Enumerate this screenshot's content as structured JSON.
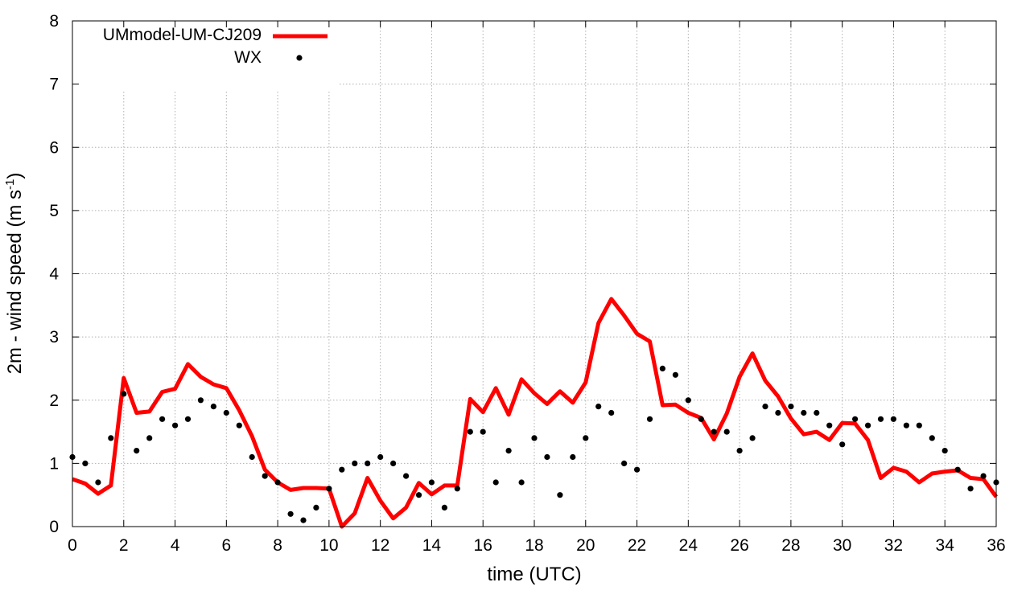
{
  "chart_data": {
    "type": "line",
    "xlabel": "time (UTC)",
    "ylabel_main": "2m - wind speed  (m s",
    "ylabel_sup": "-1",
    "ylabel_close": ")",
    "xlim": [
      0,
      36
    ],
    "ylim": [
      0,
      8
    ],
    "xticks": [
      "0",
      "2",
      "4",
      "6",
      "8",
      "10",
      "12",
      "14",
      "16",
      "18",
      "20",
      "22",
      "24",
      "26",
      "28",
      "30",
      "32",
      "34",
      "36"
    ],
    "yticks": [
      "0",
      "1",
      "2",
      "3",
      "4",
      "5",
      "6",
      "7",
      "8"
    ],
    "grid": true,
    "legend_position": "top-left",
    "series": [
      {
        "name": "UMmodel-UM-CJ209",
        "style": "line",
        "color": "#ff0000",
        "x": [
          0,
          0.5,
          1,
          1.5,
          2,
          2.5,
          3,
          3.5,
          4,
          4.5,
          5,
          5.5,
          6,
          6.5,
          7,
          7.5,
          8,
          8.5,
          9,
          9.5,
          10,
          10.5,
          11,
          11.5,
          12,
          12.5,
          13,
          13.5,
          14,
          14.5,
          15,
          15.5,
          16,
          16.5,
          17,
          17.5,
          18,
          18.5,
          19,
          19.5,
          20,
          20.5,
          21,
          21.5,
          22,
          22.5,
          23,
          23.5,
          24,
          24.5,
          25,
          25.5,
          26,
          26.5,
          27,
          27.5,
          28,
          28.5,
          29,
          29.5,
          30,
          30.5,
          31,
          31.5,
          32,
          32.5,
          33,
          33.5,
          34,
          34.5,
          35,
          35.5,
          36
        ],
        "y": [
          0.75,
          0.68,
          0.52,
          0.65,
          2.35,
          1.8,
          1.82,
          2.13,
          2.18,
          2.57,
          2.37,
          2.25,
          2.19,
          1.84,
          1.43,
          0.9,
          0.7,
          0.58,
          0.61,
          0.61,
          0.6,
          0.0,
          0.21,
          0.77,
          0.41,
          0.13,
          0.3,
          0.69,
          0.51,
          0.65,
          0.65,
          2.02,
          1.81,
          2.19,
          1.77,
          2.33,
          2.11,
          1.94,
          2.14,
          1.96,
          2.28,
          3.22,
          3.6,
          3.34,
          3.05,
          2.93,
          1.92,
          1.93,
          1.8,
          1.72,
          1.38,
          1.79,
          2.37,
          2.74,
          2.31,
          2.06,
          1.71,
          1.46,
          1.5,
          1.37,
          1.64,
          1.63,
          1.37,
          0.77,
          0.93,
          0.87,
          0.7,
          0.84,
          0.87,
          0.89,
          0.77,
          0.75,
          0.47
        ]
      },
      {
        "name": "WX",
        "style": "points",
        "color": "#000000",
        "x": [
          0,
          0.5,
          1,
          1.5,
          2,
          2.5,
          3,
          3.5,
          4,
          4.5,
          5,
          5.5,
          6,
          6.5,
          7,
          7.5,
          8,
          8.5,
          9,
          9.5,
          10,
          10.5,
          11,
          11.5,
          12,
          12.5,
          13,
          13.5,
          14,
          14.5,
          15,
          15.5,
          16,
          16.5,
          17,
          17.5,
          18,
          18.5,
          19,
          19.5,
          20,
          20.5,
          21,
          21.5,
          22,
          22.5,
          23,
          23.5,
          24,
          24.5,
          25,
          25.5,
          26,
          26.5,
          27,
          27.5,
          28,
          28.5,
          29,
          29.5,
          30,
          30.5,
          31,
          31.5,
          32,
          32.5,
          33,
          33.5,
          34,
          34.5,
          35,
          35.5,
          36
        ],
        "y": [
          1.1,
          1.0,
          0.7,
          1.4,
          2.1,
          1.2,
          1.4,
          1.7,
          1.6,
          1.7,
          2.0,
          1.9,
          1.8,
          1.6,
          1.1,
          0.8,
          0.7,
          0.2,
          0.1,
          0.3,
          0.6,
          0.9,
          1.0,
          1.0,
          1.1,
          1.0,
          0.8,
          0.5,
          0.7,
          0.3,
          0.6,
          1.5,
          1.5,
          0.7,
          1.2,
          0.7,
          1.4,
          1.1,
          0.5,
          1.1,
          1.4,
          1.9,
          1.8,
          1.0,
          0.9,
          1.7,
          2.5,
          2.4,
          2.0,
          1.7,
          1.5,
          1.5,
          1.2,
          1.4,
          1.9,
          1.8,
          1.9,
          1.8,
          1.8,
          1.6,
          1.3,
          1.7,
          1.6,
          1.7,
          1.7,
          1.6,
          1.6,
          1.4,
          1.2,
          0.9,
          0.6,
          0.8,
          0.7
        ]
      }
    ]
  }
}
